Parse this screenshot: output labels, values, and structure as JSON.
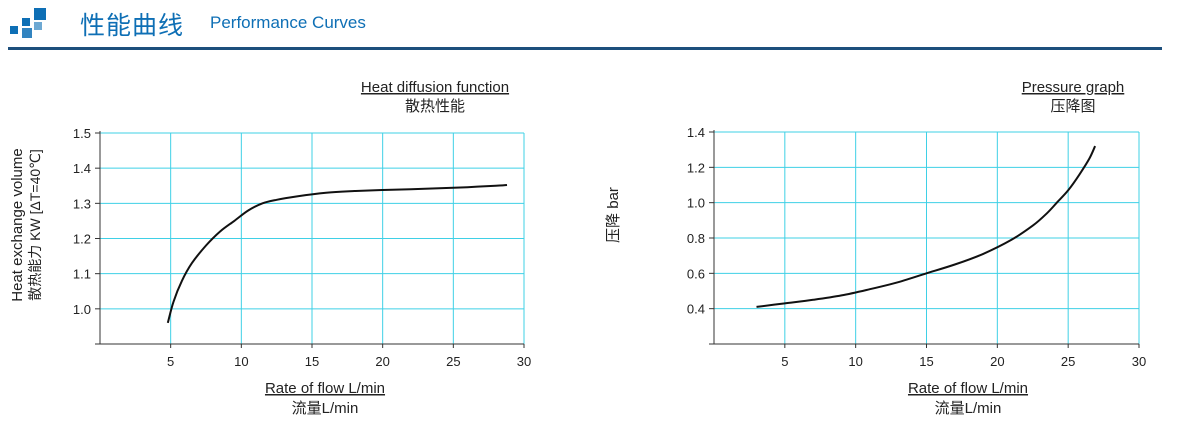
{
  "header": {
    "title_cn": "性能曲线",
    "title_en": "Performance Curves",
    "accent_color": "#0e6fb5",
    "rule_color": "#1d4f7c",
    "icon": "squares-logo-icon"
  },
  "chart_data": [
    {
      "type": "line",
      "title": "Heat diffusion function",
      "subtitle": "散热性能",
      "xlabel": "Rate of flow L/min",
      "xlabel_cn": "流量L/min",
      "ylabel": "Heat exchange volume",
      "ylabel_cn": "散热能力 KW [ΔT=40℃]",
      "xlim": [
        0,
        30
      ],
      "ylim": [
        0.9,
        1.5
      ],
      "xticks": [
        5,
        10,
        15,
        20,
        25,
        30
      ],
      "yticks": [
        1.0,
        1.1,
        1.2,
        1.3,
        1.4,
        1.5
      ],
      "ytick_labels": [
        "1.0",
        "1.1",
        "1.2",
        "1.3",
        "1.4",
        "1.5"
      ],
      "grid": true,
      "grid_color": "#3fd0e6",
      "series": [
        {
          "x": [
            4.8,
            5.2,
            5.8,
            6.5,
            7.5,
            8.5,
            9.5,
            10.5,
            11.5,
            12.5,
            14,
            16,
            18,
            20,
            22,
            24,
            26,
            28,
            28.8
          ],
          "y": [
            0.96,
            1.02,
            1.08,
            1.13,
            1.18,
            1.22,
            1.25,
            1.28,
            1.3,
            1.31,
            1.32,
            1.33,
            1.335,
            1.338,
            1.34,
            1.343,
            1.346,
            1.35,
            1.352
          ]
        }
      ]
    },
    {
      "type": "line",
      "title": "Pressure graph",
      "subtitle": "压降图",
      "xlabel": "Rate of flow L/min",
      "xlabel_cn": "流量L/min",
      "ylabel": "压降 bar",
      "xlim": [
        0,
        30
      ],
      "ylim": [
        0.2,
        1.4
      ],
      "xticks": [
        5,
        10,
        15,
        20,
        25,
        30
      ],
      "yticks": [
        0.4,
        0.6,
        0.8,
        1.0,
        1.2,
        1.4
      ],
      "ytick_labels": [
        "0.4",
        "0.6",
        "0.8",
        "1.0",
        "1.2",
        "1.4"
      ],
      "grid": true,
      "grid_color": "#3fd0e6",
      "series": [
        {
          "x": [
            3,
            5,
            7,
            9,
            11,
            13,
            15,
            17,
            19,
            21,
            22.5,
            23.5,
            24.2,
            25,
            25.8,
            26.5,
            26.9
          ],
          "y": [
            0.41,
            0.43,
            0.45,
            0.475,
            0.51,
            0.55,
            0.6,
            0.65,
            0.71,
            0.79,
            0.87,
            0.94,
            1.0,
            1.07,
            1.16,
            1.25,
            1.32
          ]
        }
      ]
    }
  ]
}
